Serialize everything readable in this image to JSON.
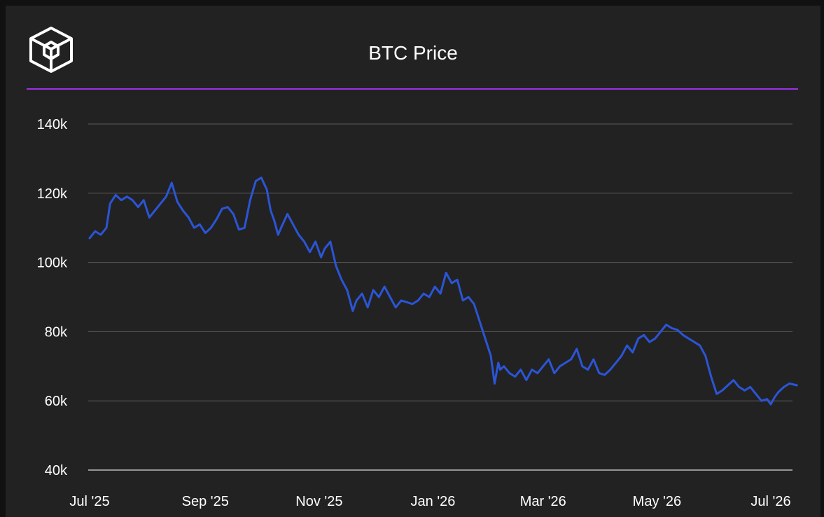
{
  "header": {
    "title": "BTC Price",
    "accent_color": "#9b30e8",
    "logo_icon": "cube-logo-icon"
  },
  "chart_data": {
    "type": "line",
    "title": "BTC Price",
    "xlabel": "",
    "ylabel": "",
    "ylim": [
      40000,
      140000
    ],
    "yticks": [
      {
        "value": 40000,
        "label": "40k"
      },
      {
        "value": 60000,
        "label": "60k"
      },
      {
        "value": 80000,
        "label": "80k"
      },
      {
        "value": 100000,
        "label": "100k"
      },
      {
        "value": 120000,
        "label": "120k"
      },
      {
        "value": 140000,
        "label": "140k"
      }
    ],
    "xlim": [
      "2025-07-01",
      "2026-07-15"
    ],
    "xticks": [
      {
        "value": "2025-07-01",
        "label": "Jul '25"
      },
      {
        "value": "2025-09-01",
        "label": "Sep '25"
      },
      {
        "value": "2025-11-01",
        "label": "Nov '25"
      },
      {
        "value": "2026-01-01",
        "label": "Jan '26"
      },
      {
        "value": "2026-03-01",
        "label": "Mar '26"
      },
      {
        "value": "2026-05-01",
        "label": "May '26"
      },
      {
        "value": "2026-07-01",
        "label": "Jul '26"
      }
    ],
    "grid": true,
    "line_color": "#2b55d6",
    "series": [
      {
        "x": [
          "2025-07-01",
          "2025-07-04",
          "2025-07-07",
          "2025-07-10",
          "2025-07-12",
          "2025-07-15",
          "2025-07-18",
          "2025-07-21",
          "2025-07-24",
          "2025-07-27",
          "2025-07-30",
          "2025-08-02",
          "2025-08-05",
          "2025-08-08",
          "2025-08-11",
          "2025-08-14",
          "2025-08-17",
          "2025-08-20",
          "2025-08-23",
          "2025-08-26",
          "2025-08-29",
          "2025-09-01",
          "2025-09-04",
          "2025-09-07",
          "2025-09-10",
          "2025-09-13",
          "2025-09-16",
          "2025-09-19",
          "2025-09-22",
          "2025-09-25",
          "2025-09-28",
          "2025-10-01",
          "2025-10-04",
          "2025-10-06",
          "2025-10-08",
          "2025-10-10",
          "2025-10-12",
          "2025-10-15",
          "2025-10-18",
          "2025-10-21",
          "2025-10-24",
          "2025-10-27",
          "2025-10-30",
          "2025-11-02",
          "2025-11-04",
          "2025-11-07",
          "2025-11-10",
          "2025-11-13",
          "2025-11-16",
          "2025-11-19",
          "2025-11-21",
          "2025-11-24",
          "2025-11-27",
          "2025-11-30",
          "2025-12-03",
          "2025-12-06",
          "2025-12-09",
          "2025-12-12",
          "2025-12-15",
          "2025-12-18",
          "2025-12-21",
          "2025-12-24",
          "2025-12-27",
          "2025-12-30",
          "2026-01-02",
          "2026-01-05",
          "2026-01-08",
          "2026-01-11",
          "2026-01-14",
          "2026-01-17",
          "2026-01-20",
          "2026-01-23",
          "2026-01-26",
          "2026-01-29",
          "2026-02-01",
          "2026-02-03",
          "2026-02-05",
          "2026-02-06",
          "2026-02-08",
          "2026-02-11",
          "2026-02-14",
          "2026-02-17",
          "2026-02-20",
          "2026-02-23",
          "2026-02-26",
          "2026-03-01",
          "2026-03-04",
          "2026-03-07",
          "2026-03-10",
          "2026-03-13",
          "2026-03-16",
          "2026-03-19",
          "2026-03-22",
          "2026-03-25",
          "2026-03-28",
          "2026-03-31",
          "2026-04-03",
          "2026-04-06",
          "2026-04-09",
          "2026-04-12",
          "2026-04-15",
          "2026-04-18",
          "2026-04-21",
          "2026-04-24",
          "2026-04-27",
          "2026-04-30",
          "2026-05-03",
          "2026-05-06",
          "2026-05-09",
          "2026-05-12",
          "2026-05-15",
          "2026-05-18",
          "2026-05-21",
          "2026-05-24",
          "2026-05-27",
          "2026-05-30",
          "2026-06-02",
          "2026-06-05",
          "2026-06-08",
          "2026-06-11",
          "2026-06-14",
          "2026-06-17",
          "2026-06-20",
          "2026-06-23",
          "2026-06-26",
          "2026-06-29",
          "2026-07-01",
          "2026-07-03",
          "2026-07-05",
          "2026-07-08",
          "2026-07-11",
          "2026-07-15"
        ],
        "values": [
          107000,
          109000,
          108000,
          110000,
          117000,
          119500,
          118000,
          119000,
          118000,
          116000,
          118000,
          113000,
          115000,
          117000,
          119000,
          123000,
          117500,
          115000,
          113000,
          110000,
          111000,
          108500,
          110000,
          112500,
          115500,
          116000,
          114000,
          109500,
          110000,
          118000,
          123500,
          124500,
          121000,
          115000,
          112000,
          108000,
          110500,
          114000,
          111000,
          108000,
          106000,
          103000,
          106000,
          101500,
          104000,
          106000,
          99000,
          95000,
          92000,
          86000,
          89000,
          91000,
          87000,
          92000,
          90000,
          93000,
          90000,
          87000,
          89000,
          88500,
          88000,
          89000,
          91000,
          90000,
          93000,
          91000,
          97000,
          94000,
          95000,
          89000,
          90000,
          88000,
          83000,
          78000,
          73000,
          65000,
          71000,
          69000,
          70000,
          68000,
          67000,
          69000,
          66000,
          69000,
          68000,
          70000,
          72000,
          68000,
          70000,
          71000,
          72000,
          75000,
          70000,
          69000,
          72000,
          68000,
          67500,
          69000,
          71000,
          73000,
          76000,
          74000,
          78000,
          79000,
          77000,
          78000,
          80000,
          82000,
          81000,
          80500,
          79000,
          78000,
          77000,
          76000,
          73000,
          67000,
          62000,
          63000,
          64500,
          66000,
          64000,
          63000,
          64000,
          62000,
          60000,
          60500,
          59000,
          61000,
          62500,
          64000,
          65000,
          64500
        ]
      }
    ]
  }
}
